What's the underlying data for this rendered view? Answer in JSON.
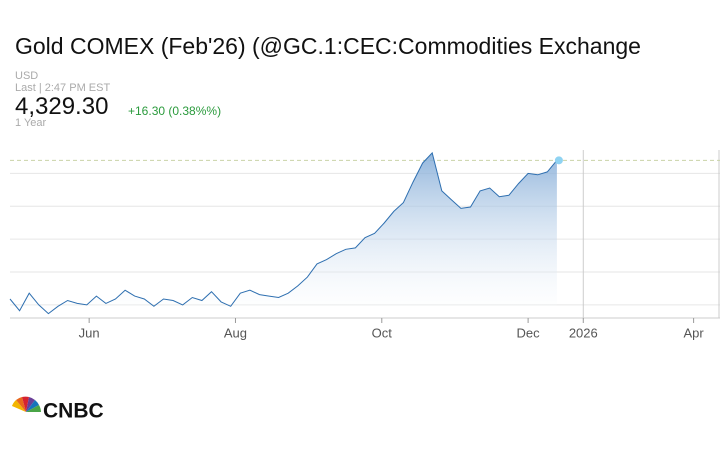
{
  "header": {
    "title": "Gold COMEX (Feb'26) (@GC.1:CEC:Commodities Exchange",
    "currency": "USD",
    "last_time": "Last | 2:47 PM EST",
    "price": "4,329.30",
    "change": "+16.30 (0.38%%)",
    "range": "1 Year"
  },
  "chart_data": {
    "type": "area",
    "values": [
      3380,
      3300,
      3420,
      3340,
      3280,
      3330,
      3370,
      3350,
      3340,
      3400,
      3350,
      3380,
      3440,
      3400,
      3380,
      3330,
      3380,
      3370,
      3340,
      3390,
      3370,
      3430,
      3360,
      3330,
      3420,
      3440,
      3410,
      3400,
      3390,
      3420,
      3470,
      3530,
      3620,
      3650,
      3690,
      3720,
      3730,
      3800,
      3830,
      3900,
      3980,
      4040,
      4180,
      4310,
      4380,
      4120,
      4060,
      4000,
      4010,
      4120,
      4140,
      4080,
      4090,
      4170,
      4240,
      4230,
      4250,
      4329.3
    ],
    "color": "#2e6fb0",
    "xlim": [
      0,
      74
    ],
    "xticks": [
      {
        "value": 8.25,
        "label": "Jun"
      },
      {
        "value": 23.5,
        "label": "Aug"
      },
      {
        "value": 38.75,
        "label": "Oct"
      },
      {
        "value": 54,
        "label": "Dec"
      },
      {
        "value": 59.75,
        "label": "2026"
      },
      {
        "value": 71.25,
        "label": "Apr"
      }
    ],
    "ylim": [
      3250,
      4400
    ],
    "yticks": [
      3340,
      3565,
      3790,
      4015,
      4240
    ],
    "grid": true
  },
  "footer": {
    "logo": "CNBC"
  }
}
